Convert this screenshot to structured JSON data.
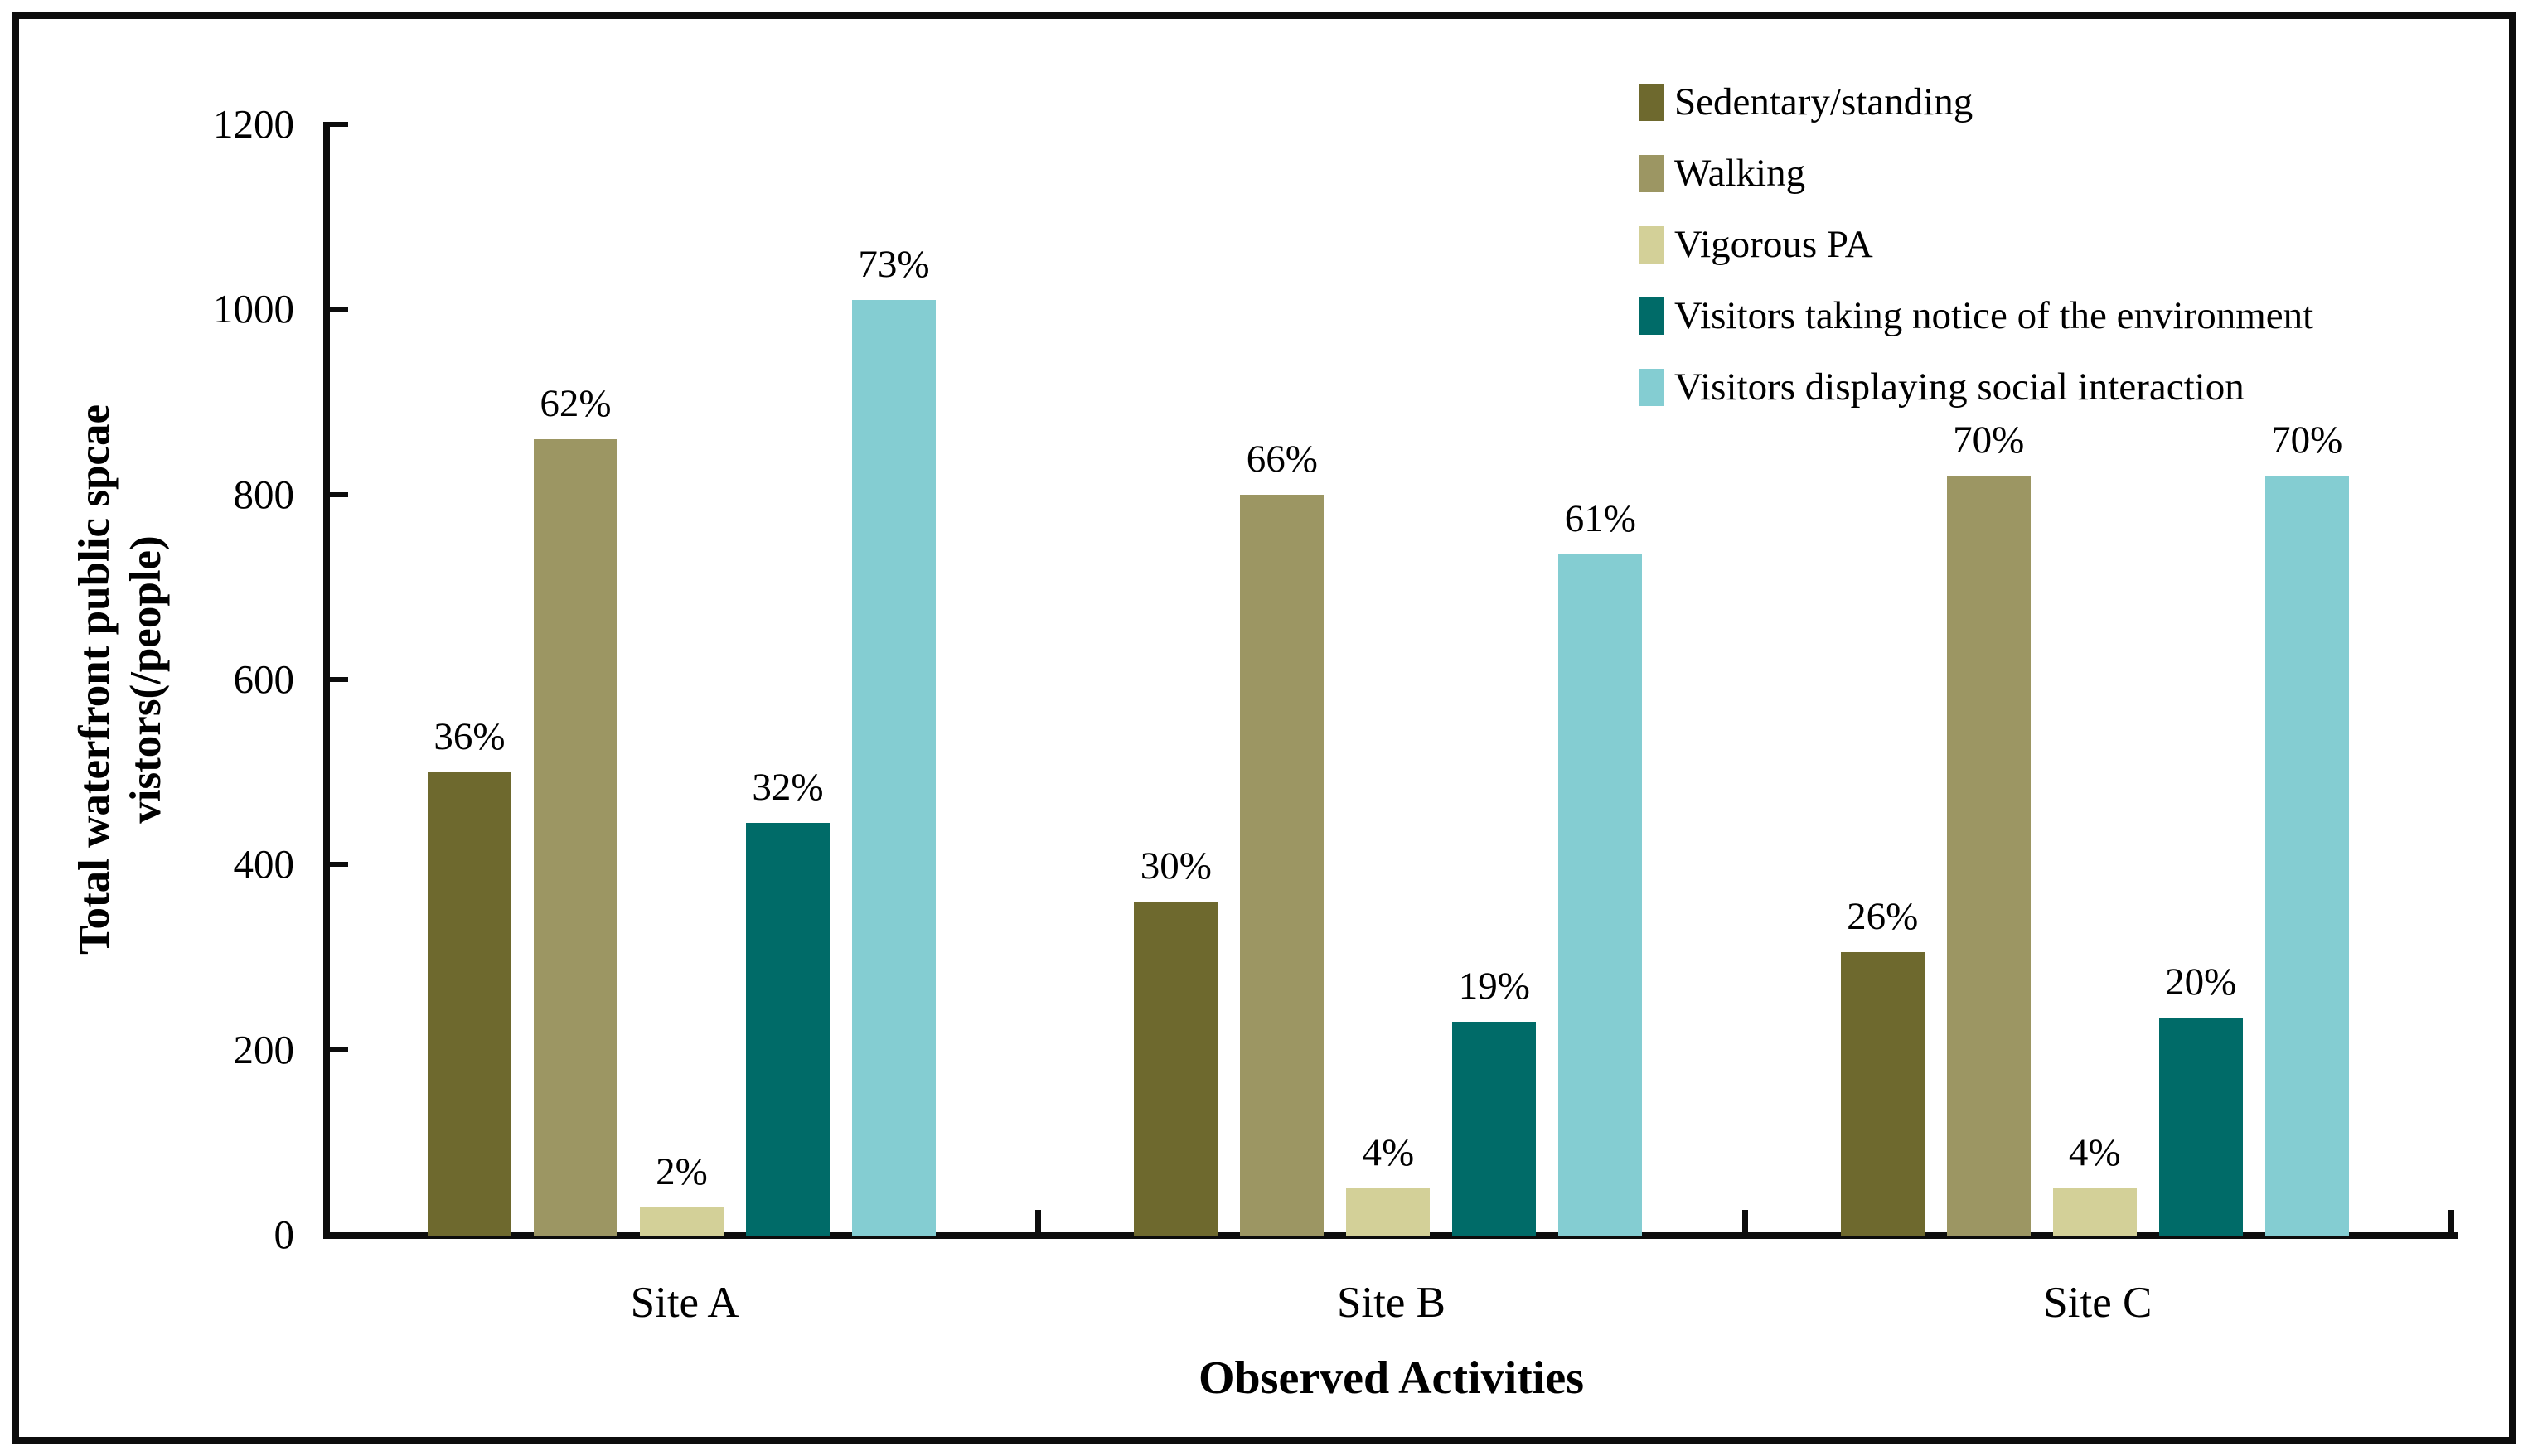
{
  "figure": {
    "background": "#ffffff",
    "frame_color": "#0d0d0d"
  },
  "chart_data": {
    "type": "bar",
    "title": "",
    "xlabel": "Observed Activities",
    "ylabel_line1": "Total waterfront public spcae",
    "ylabel_line2": "vistors(/people)",
    "ylim": [
      0,
      1200
    ],
    "yticks": [
      0,
      200,
      400,
      600,
      800,
      1000,
      1200
    ],
    "grid": false,
    "legend_position": "top-right",
    "categories": [
      "Site A",
      "Site B",
      "Site C"
    ],
    "series": [
      {
        "name": "Sedentary/standing",
        "color": "#6e692e",
        "values": [
          500,
          360,
          305
        ],
        "labels": [
          "36%",
          "30%",
          "26%"
        ]
      },
      {
        "name": "Walking",
        "color": "#9c9663",
        "values": [
          860,
          800,
          820
        ],
        "labels": [
          "62%",
          "66%",
          "70%"
        ]
      },
      {
        "name": "Vigorous PA",
        "color": "#d3d098",
        "values": [
          30,
          50,
          50
        ],
        "labels": [
          "2%",
          "4%",
          "4%"
        ]
      },
      {
        "name": "Visitors taking notice of the environment",
        "color": "#006b68",
        "values": [
          445,
          230,
          235
        ],
        "labels": [
          "32%",
          "19%",
          "20%"
        ]
      },
      {
        "name": "Visitors displaying social interaction",
        "color": "#84cdd2",
        "values": [
          1010,
          735,
          820
        ],
        "labels": [
          "73%",
          "61%",
          "70%"
        ]
      }
    ]
  }
}
